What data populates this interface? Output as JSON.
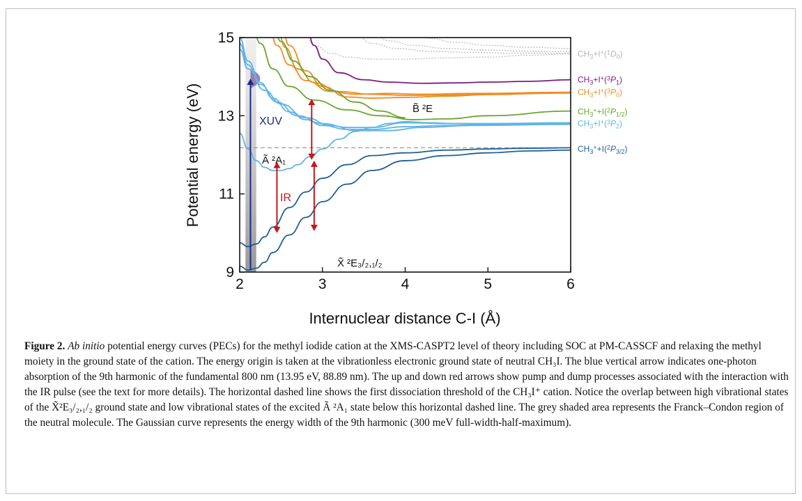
{
  "chart_data": {
    "type": "line",
    "xlabel": "Internuclear distance C-I (Å)",
    "ylabel": "Potential energy (eV)",
    "xlim": [
      2,
      6
    ],
    "ylim": [
      9,
      15
    ],
    "x_ticks": [
      "2",
      "3",
      "4",
      "5",
      "6"
    ],
    "y_ticks": [
      "9",
      "11",
      "13",
      "15"
    ],
    "series": [
      {
        "name": "CH3+I+(1D0)",
        "color": "#c0c0c0",
        "dashed": true,
        "x": [
          2.75,
          2.9,
          3.1,
          3.3,
          3.6,
          4.0,
          4.5,
          5.0,
          5.5,
          6.0
        ],
        "y": [
          15.3,
          14.8,
          14.6,
          14.5,
          14.45,
          14.45,
          14.48,
          14.5,
          14.55,
          14.58
        ]
      },
      {
        "name": "CH3+I+(1D0)",
        "color": "#c0c0c0",
        "dashed": true,
        "x": [
          3.25,
          3.4,
          3.6,
          3.9,
          4.3,
          4.8,
          5.3,
          6.0
        ],
        "y": [
          15.3,
          15.05,
          14.85,
          14.72,
          14.65,
          14.62,
          14.6,
          14.6
        ]
      },
      {
        "name": "CH3+I+(1D0)",
        "color": "#c0c0c0",
        "dashed": true,
        "x": [
          3.45,
          3.6,
          3.8,
          4.1,
          4.5,
          5.0,
          5.5,
          6.0
        ],
        "y": [
          15.3,
          15.1,
          14.92,
          14.8,
          14.72,
          14.68,
          14.65,
          14.64
        ]
      },
      {
        "name": "CH3+I+(1D0)",
        "color": "#c0c0c0",
        "dashed": true,
        "x": [
          3.95,
          4.1,
          4.3,
          4.6,
          5.0,
          5.5,
          6.0
        ],
        "y": [
          15.3,
          15.12,
          14.98,
          14.88,
          14.8,
          14.75,
          14.72
        ]
      },
      {
        "name": "CH3+I+(3P1)",
        "color": "#7b1a7e",
        "dashed": false,
        "x": [
          2.8,
          2.9,
          3.0,
          3.2,
          3.5,
          3.8,
          4.2,
          4.6,
          5.0,
          5.5,
          6.0
        ],
        "y": [
          15.3,
          14.8,
          14.45,
          14.1,
          13.92,
          13.86,
          13.83,
          13.84,
          13.86,
          13.88,
          13.92
        ]
      },
      {
        "name": "CH3+I+(3P0)",
        "color": "#f08c1f",
        "dashed": false,
        "x": [
          2.5,
          2.6,
          2.8,
          3.0,
          3.3,
          3.6,
          4.0,
          4.5,
          5.0,
          6.0
        ],
        "y": [
          15.3,
          14.8,
          14.15,
          13.75,
          13.48,
          13.45,
          13.47,
          13.5,
          13.54,
          13.6
        ]
      },
      {
        "name": "CH3+I+(3P0)",
        "color": "#f08c1f",
        "dashed": false,
        "x": [
          2.45,
          2.55,
          2.7,
          2.9,
          3.2,
          3.6,
          4.0,
          4.5,
          5.0,
          6.0
        ],
        "y": [
          15.3,
          14.75,
          14.2,
          13.85,
          13.62,
          13.55,
          13.52,
          13.53,
          13.55,
          13.58
        ]
      },
      {
        "name": "CH3+I+(3P0)",
        "color": "#f08c1f",
        "dashed": false,
        "x": [
          2.35,
          2.45,
          2.6,
          2.8,
          3.1,
          3.4,
          3.8,
          4.2,
          4.8,
          6.0
        ],
        "y": [
          15.3,
          14.8,
          14.3,
          13.9,
          13.62,
          13.55,
          13.57,
          13.55,
          13.57,
          13.6
        ]
      },
      {
        "name": "CH3++I(2P1/2)",
        "color": "#6aa52c",
        "dashed": false,
        "x": [
          2.15,
          2.25,
          2.4,
          2.6,
          2.9,
          3.3,
          3.7,
          4.1,
          4.5,
          5.0,
          6.0
        ],
        "y": [
          15.3,
          14.85,
          14.2,
          13.75,
          13.4,
          13.15,
          13.0,
          12.9,
          12.92,
          13.0,
          13.12
        ]
      },
      {
        "name": "CH3++I(2P1/2)",
        "color": "#6aa52c",
        "dashed": false,
        "x": [
          2.4,
          2.5,
          2.65,
          2.85,
          3.1,
          3.4,
          3.7,
          4.0
        ],
        "y": [
          15.3,
          14.9,
          14.4,
          14.0,
          13.65,
          13.35,
          13.12,
          12.95
        ]
      },
      {
        "name": "CH3+I+(3P2)",
        "color": "#5fb4e8",
        "dashed": false,
        "x": [
          2.0,
          2.1,
          2.25,
          2.4,
          2.6,
          2.8,
          3.0,
          3.3,
          3.6,
          4.0,
          4.5,
          5.0,
          6.0
        ],
        "y": [
          15.0,
          14.4,
          13.85,
          13.45,
          13.1,
          12.9,
          12.75,
          12.65,
          12.65,
          12.72,
          12.75,
          12.77,
          12.8
        ]
      },
      {
        "name": "CH3+I+(3P2)",
        "color": "#5fb4e8",
        "dashed": false,
        "x": [
          2.0,
          2.1,
          2.25,
          2.45,
          2.7,
          3.0,
          3.3,
          3.6,
          4.0,
          4.5,
          5.0,
          6.0
        ],
        "y": [
          14.85,
          14.3,
          13.8,
          13.35,
          13.0,
          12.8,
          12.7,
          12.7,
          12.82,
          12.8,
          12.78,
          12.78
        ]
      },
      {
        "name": "CH3+I+(3P2)",
        "color": "#5fb4e8",
        "dashed": false,
        "x": [
          2.0,
          2.1,
          2.3,
          2.5,
          2.8,
          3.1,
          3.4,
          3.8,
          4.2,
          4.8,
          6.0
        ],
        "y": [
          14.7,
          14.2,
          13.65,
          13.3,
          12.95,
          12.75,
          12.62,
          12.62,
          12.7,
          12.75,
          12.78
        ]
      },
      {
        "name": "Ã 2A1",
        "color": "#5fb4e8",
        "dashed": false,
        "x": [
          2.0,
          2.1,
          2.2,
          2.3,
          2.4,
          2.5,
          2.6,
          2.7,
          2.85,
          3.0,
          3.2,
          3.4,
          3.6,
          3.8,
          4.0,
          4.3,
          4.6,
          5.0,
          6.0
        ],
        "y": [
          12.55,
          12.15,
          11.85,
          11.68,
          11.6,
          11.6,
          11.65,
          11.75,
          11.95,
          12.15,
          12.4,
          12.6,
          12.7,
          12.8,
          12.85,
          12.82,
          12.8,
          12.8,
          12.82
        ]
      },
      {
        "name": "X̃ 2E3/2,1/2",
        "color": "#1f5f96",
        "dashed": false,
        "x": [
          2.0,
          2.1,
          2.2,
          2.3,
          2.4,
          2.6,
          2.8,
          3.0,
          3.3,
          3.6,
          4.0,
          4.5,
          5.0,
          5.5,
          6.0
        ],
        "y": [
          9.75,
          9.65,
          9.72,
          9.9,
          10.15,
          10.65,
          11.05,
          11.4,
          11.75,
          11.98,
          12.05,
          12.12,
          12.15,
          12.17,
          12.18
        ]
      },
      {
        "name": "X̃ 2E3/2,1/2",
        "color": "#1f5f96",
        "dashed": false,
        "x": [
          2.0,
          2.1,
          2.2,
          2.3,
          2.4,
          2.6,
          2.8,
          3.0,
          3.3,
          3.6,
          4.0,
          4.5,
          5.0,
          5.5,
          6.0
        ],
        "y": [
          9.15,
          9.05,
          9.1,
          9.25,
          9.5,
          9.95,
          10.4,
          10.8,
          11.25,
          11.6,
          11.85,
          11.98,
          12.05,
          12.1,
          12.12
        ]
      }
    ],
    "dashed_threshold": {
      "y": 12.18,
      "x_range": [
        2.0,
        6.0
      ],
      "color": "#999999"
    },
    "franck_condon_region": {
      "x_range": [
        2.07,
        2.2
      ],
      "color": "#b0b0b0"
    },
    "arrows": [
      {
        "name": "XUV",
        "color": "#1b2b8c",
        "x": 2.13,
        "y_from": 9.05,
        "y_to": 13.95,
        "both_heads": false
      },
      {
        "name": "IR",
        "color": "#c8161d",
        "x": 2.45,
        "y_from": 10.0,
        "y_to": 11.82,
        "both_heads": true
      },
      {
        "name": "IR-right",
        "color": "#c8161d",
        "x": 2.87,
        "y_from": 11.87,
        "y_to": 13.43,
        "both_heads": true
      },
      {
        "name": "IR-lower-right",
        "color": "#c8161d",
        "x": 2.9,
        "y_from": 10.05,
        "y_to": 11.85,
        "both_heads": true
      }
    ],
    "curve_labels": [
      {
        "text": "CH3+I+(1D0)",
        "color": "#b5b5b5",
        "y": 14.58
      },
      {
        "text": "CH3+I+(3P1)",
        "color": "#7b1a7e",
        "y": 13.92
      },
      {
        "text": "CH3+I+(3P0)",
        "color": "#f08c1f",
        "y": 13.6
      },
      {
        "text": "CH3++I(2P1/2)",
        "color": "#6aa52c",
        "y": 13.1
      },
      {
        "text": "CH3+I+(3P2)",
        "color": "#5fb4e8",
        "y": 12.8
      },
      {
        "text": "CH3++I(2P3/2)",
        "color": "#1f5f96",
        "y": 12.15
      }
    ]
  },
  "labels": {
    "xuv": "XUV",
    "ir": "IR",
    "state_b": "B̃ ²E",
    "state_a": "Ã ²A₁",
    "state_x": "X̃ ²E₃/₂,₁/₂"
  },
  "caption": {
    "fig_label": "Figure 2.",
    "italic_start": "Ab initio",
    "text": " potential energy curves (PECs) for the methyl iodide cation at the XMS-CASPT2 level of theory including SOC at PM-CASSCF and relaxing the methyl moiety in the ground state of the cation. The energy origin is taken at the vibrationless electronic ground state of neutral CH₃I. The blue vertical arrow indicates one-photon absorption of the 9th harmonic of the fundamental 800 nm (13.95 eV, 88.89 nm). The up and down red arrows show pump and dump processes associated with the interaction with the IR pulse (see the text for more details). The horizontal dashed line shows the first dissociation threshold of the CH₃I⁺ cation. Notice the overlap between high vibrational states of the X̃²E₃/₂,₁/₂ ground state and low vibrational states of the excited Ã ²A₁ state below this horizontal dashed line. The grey shaded area represents the Franck–Condon region of the neutral molecule. The Gaussian curve represents the energy width of the 9th harmonic (300 meV full-width-half-maximum)."
  }
}
